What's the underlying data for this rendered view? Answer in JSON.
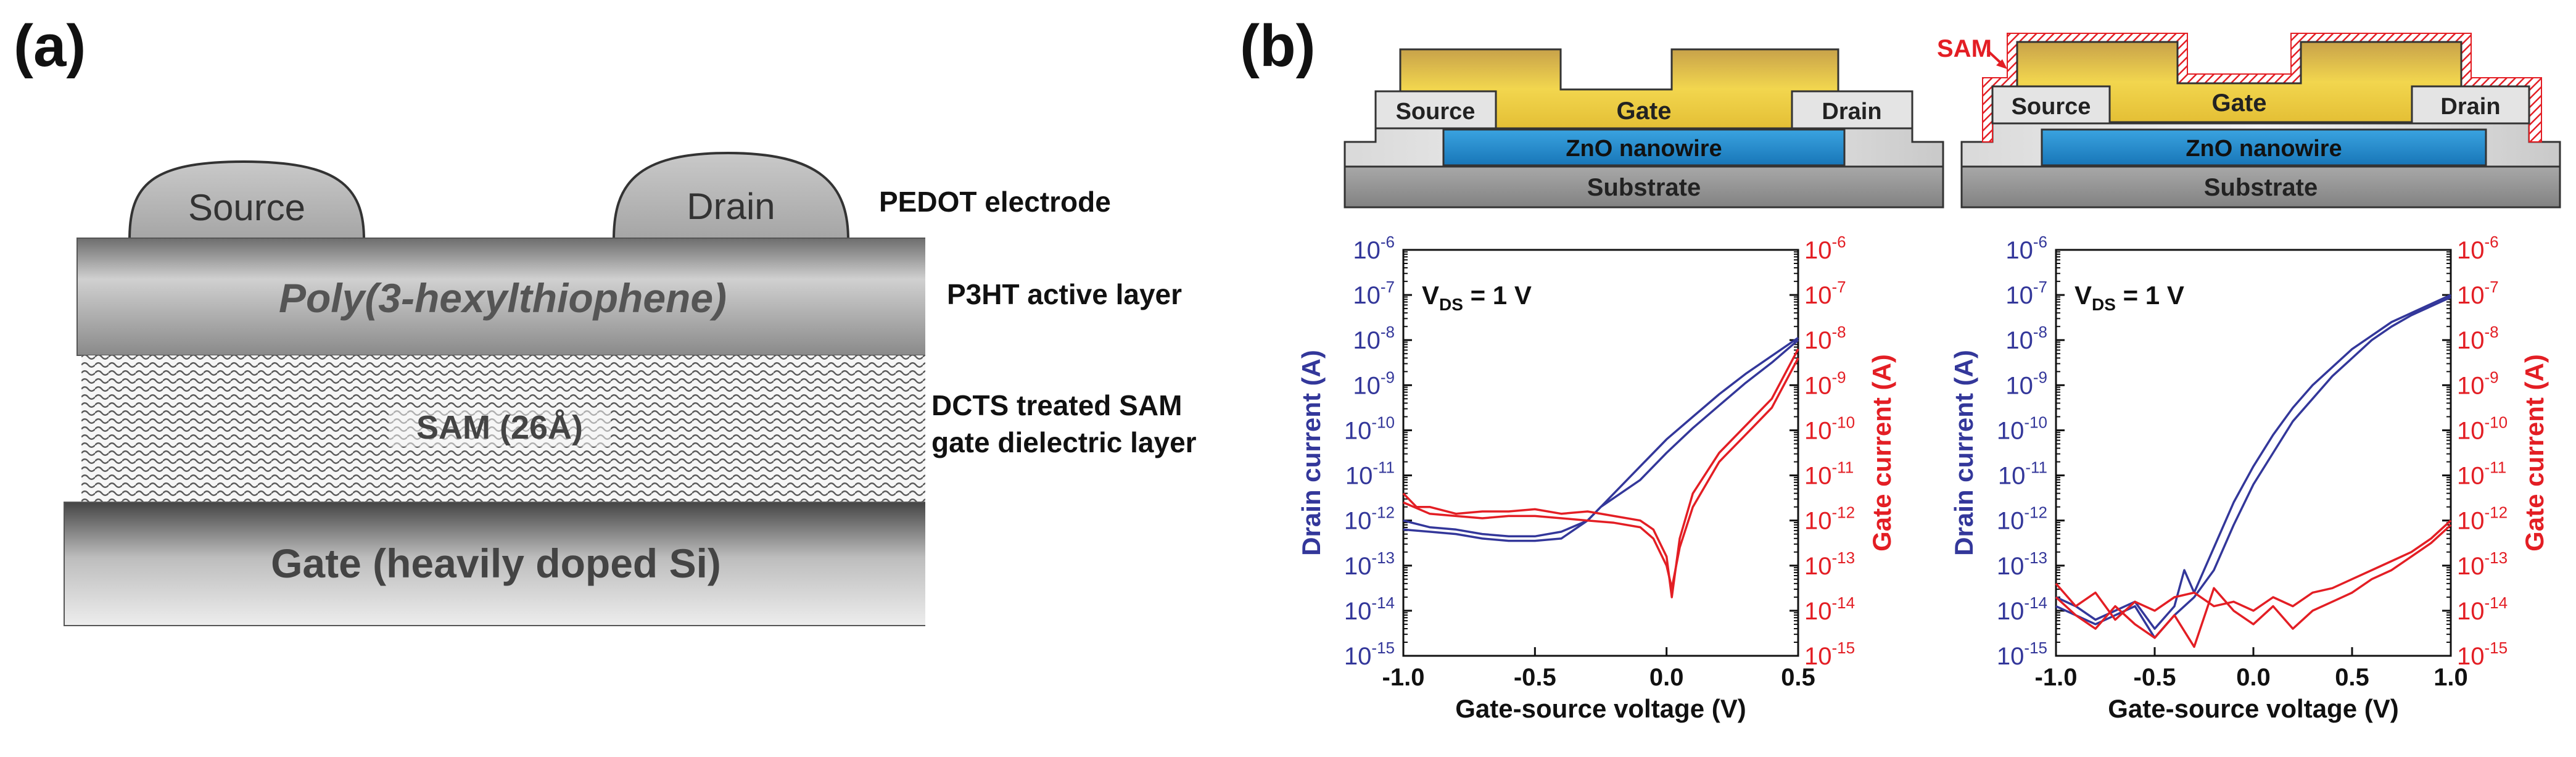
{
  "panel_a": {
    "label": "(a)",
    "source_label": "Source",
    "drain_label": "Drain",
    "p3ht_layer_text": "Poly(3-hexylthiophene)",
    "sam_layer_text": "SAM (26Å)",
    "gate_layer_text": "Gate (heavily doped Si)",
    "electrode_caption": "PEDOT electrode",
    "active_caption": "P3HT active layer",
    "dielectric_caption_line1": "DCTS treated SAM",
    "dielectric_caption_line2": "gate dielectric layer"
  },
  "panel_b": {
    "label": "(b)",
    "left_device": {
      "gate": "Gate",
      "source": "Source",
      "drain": "Drain",
      "nanowire": "ZnO nanowire",
      "substrate": "Substrate"
    },
    "right_device": {
      "sam": "SAM",
      "gate": "Gate",
      "source": "Source",
      "drain": "Drain",
      "nanowire": "ZnO nanowire",
      "substrate": "Substrate"
    }
  },
  "colors": {
    "drain_axis": "#33379a",
    "gate_axis": "#e31e24",
    "gate_electrode": "#e9c53a",
    "nanowire": "#1f8fd0",
    "sam": "#e31e24"
  },
  "chart_data": [
    {
      "type": "line",
      "annotation": "V_DS = 1 V",
      "xlabel": "Gate-source voltage (V)",
      "ylabel_left": "Drain current (A)",
      "ylabel_right": "Gate current (A)",
      "xlim": [
        -1.0,
        0.5
      ],
      "ylim_log10": [
        -15,
        -6
      ],
      "y_scale": "log",
      "x_ticks": [
        "-1.0",
        "-0.5",
        "0.0",
        "0.5"
      ],
      "x_tick_values": [
        -1.0,
        -0.5,
        0.0,
        0.5
      ],
      "y_tick_exponents": [
        -15,
        -14,
        -13,
        -12,
        -11,
        -10,
        -9,
        -8,
        -7,
        -6
      ],
      "series": [
        {
          "axis": "left",
          "color": "drain_axis",
          "x": [
            -1.0,
            -0.9,
            -0.8,
            -0.7,
            -0.6,
            -0.5,
            -0.4,
            -0.3,
            -0.2,
            -0.1,
            0.0,
            0.1,
            0.2,
            0.3,
            0.4,
            0.5
          ],
          "log10_y": [
            -12.2,
            -12.25,
            -12.3,
            -12.4,
            -12.45,
            -12.45,
            -12.4,
            -12.0,
            -11.4,
            -10.8,
            -10.2,
            -9.7,
            -9.2,
            -8.75,
            -8.35,
            -7.95
          ]
        },
        {
          "axis": "left",
          "color": "drain_axis",
          "x": [
            -1.0,
            -0.9,
            -0.8,
            -0.7,
            -0.6,
            -0.5,
            -0.4,
            -0.3,
            -0.25,
            -0.1,
            0.0,
            0.1,
            0.2,
            0.3,
            0.4,
            0.5
          ],
          "log10_y": [
            -12.0,
            -12.15,
            -12.2,
            -12.3,
            -12.35,
            -12.35,
            -12.25,
            -12.0,
            -11.7,
            -11.1,
            -10.5,
            -9.95,
            -9.45,
            -8.95,
            -8.5,
            -8.0
          ]
        },
        {
          "axis": "right",
          "color": "gate_axis",
          "x": [
            -1.0,
            -0.95,
            -0.9,
            -0.8,
            -0.7,
            -0.6,
            -0.5,
            -0.4,
            -0.3,
            -0.2,
            -0.1,
            -0.05,
            0.0,
            0.02,
            0.05,
            0.1,
            0.2,
            0.3,
            0.4,
            0.5
          ],
          "log10_y": [
            -11.4,
            -11.7,
            -11.7,
            -11.85,
            -11.8,
            -11.8,
            -11.75,
            -11.85,
            -11.8,
            -11.9,
            -12.0,
            -12.2,
            -12.8,
            -13.7,
            -12.4,
            -11.4,
            -10.5,
            -9.9,
            -9.3,
            -8.2
          ]
        },
        {
          "axis": "right",
          "color": "gate_axis",
          "x": [
            -1.0,
            -0.9,
            -0.8,
            -0.7,
            -0.6,
            -0.5,
            -0.4,
            -0.3,
            -0.2,
            -0.1,
            -0.05,
            0.0,
            0.02,
            0.05,
            0.1,
            0.2,
            0.3,
            0.4,
            0.5
          ],
          "log10_y": [
            -11.6,
            -11.85,
            -11.9,
            -11.95,
            -11.9,
            -11.9,
            -11.95,
            -12.0,
            -12.05,
            -12.15,
            -12.4,
            -13.0,
            -13.5,
            -12.6,
            -11.7,
            -10.7,
            -10.1,
            -9.5,
            -8.4
          ]
        }
      ]
    },
    {
      "type": "line",
      "annotation": "V_DS = 1 V",
      "xlabel": "Gate-source voltage (V)",
      "ylabel_left": "Drain current (A)",
      "ylabel_right": "Gate current (A)",
      "xlim": [
        -1.0,
        1.0
      ],
      "ylim_log10": [
        -15,
        -6
      ],
      "y_scale": "log",
      "x_ticks": [
        "-1.0",
        "-0.5",
        "0.0",
        "0.5",
        "1.0"
      ],
      "x_tick_values": [
        -1.0,
        -0.5,
        0.0,
        0.5,
        1.0
      ],
      "y_tick_exponents": [
        -15,
        -14,
        -13,
        -12,
        -11,
        -10,
        -9,
        -8,
        -7,
        -6
      ],
      "series": [
        {
          "axis": "left",
          "color": "drain_axis",
          "x": [
            -1.0,
            -0.9,
            -0.8,
            -0.7,
            -0.6,
            -0.5,
            -0.4,
            -0.35,
            -0.3,
            -0.2,
            -0.1,
            0.0,
            0.1,
            0.2,
            0.3,
            0.4,
            0.5,
            0.6,
            0.7,
            0.8,
            0.9,
            1.0
          ],
          "log10_y": [
            -13.7,
            -13.9,
            -14.2,
            -14.0,
            -13.8,
            -14.4,
            -13.9,
            -13.1,
            -13.6,
            -12.6,
            -11.6,
            -10.8,
            -10.1,
            -9.5,
            -9.0,
            -8.6,
            -8.2,
            -7.9,
            -7.6,
            -7.4,
            -7.2,
            -7.0
          ]
        },
        {
          "axis": "left",
          "color": "drain_axis",
          "x": [
            -1.0,
            -0.9,
            -0.8,
            -0.7,
            -0.6,
            -0.5,
            -0.4,
            -0.3,
            -0.25,
            -0.2,
            -0.1,
            0.0,
            0.1,
            0.2,
            0.3,
            0.4,
            0.5,
            0.6,
            0.7,
            0.8,
            0.9,
            1.0
          ],
          "log10_y": [
            -13.9,
            -14.1,
            -14.3,
            -14.1,
            -13.9,
            -14.6,
            -14.1,
            -13.7,
            -13.4,
            -13.1,
            -12.1,
            -11.2,
            -10.5,
            -9.8,
            -9.3,
            -8.8,
            -8.4,
            -8.0,
            -7.7,
            -7.45,
            -7.25,
            -7.05
          ]
        },
        {
          "axis": "right",
          "color": "gate_axis",
          "x": [
            -1.0,
            -0.9,
            -0.8,
            -0.7,
            -0.6,
            -0.5,
            -0.4,
            -0.3,
            -0.2,
            -0.1,
            0.0,
            0.1,
            0.2,
            0.3,
            0.4,
            0.5,
            0.6,
            0.7,
            0.8,
            0.9,
            1.0
          ],
          "log10_y": [
            -13.4,
            -13.9,
            -13.6,
            -14.2,
            -13.8,
            -14.0,
            -13.7,
            -13.6,
            -13.9,
            -13.8,
            -14.0,
            -13.7,
            -13.9,
            -13.6,
            -13.5,
            -13.3,
            -13.1,
            -12.9,
            -12.7,
            -12.4,
            -12.0
          ]
        },
        {
          "axis": "right",
          "color": "gate_axis",
          "x": [
            -1.0,
            -0.9,
            -0.8,
            -0.7,
            -0.6,
            -0.5,
            -0.4,
            -0.3,
            -0.2,
            -0.1,
            0.0,
            0.1,
            0.2,
            0.3,
            0.4,
            0.5,
            0.6,
            0.7,
            0.8,
            0.9,
            1.0
          ],
          "log10_y": [
            -13.7,
            -14.1,
            -14.4,
            -13.9,
            -14.3,
            -14.6,
            -14.1,
            -14.8,
            -13.5,
            -14.0,
            -14.3,
            -13.9,
            -14.4,
            -14.0,
            -13.8,
            -13.6,
            -13.3,
            -13.1,
            -12.8,
            -12.5,
            -12.1
          ]
        }
      ]
    }
  ]
}
